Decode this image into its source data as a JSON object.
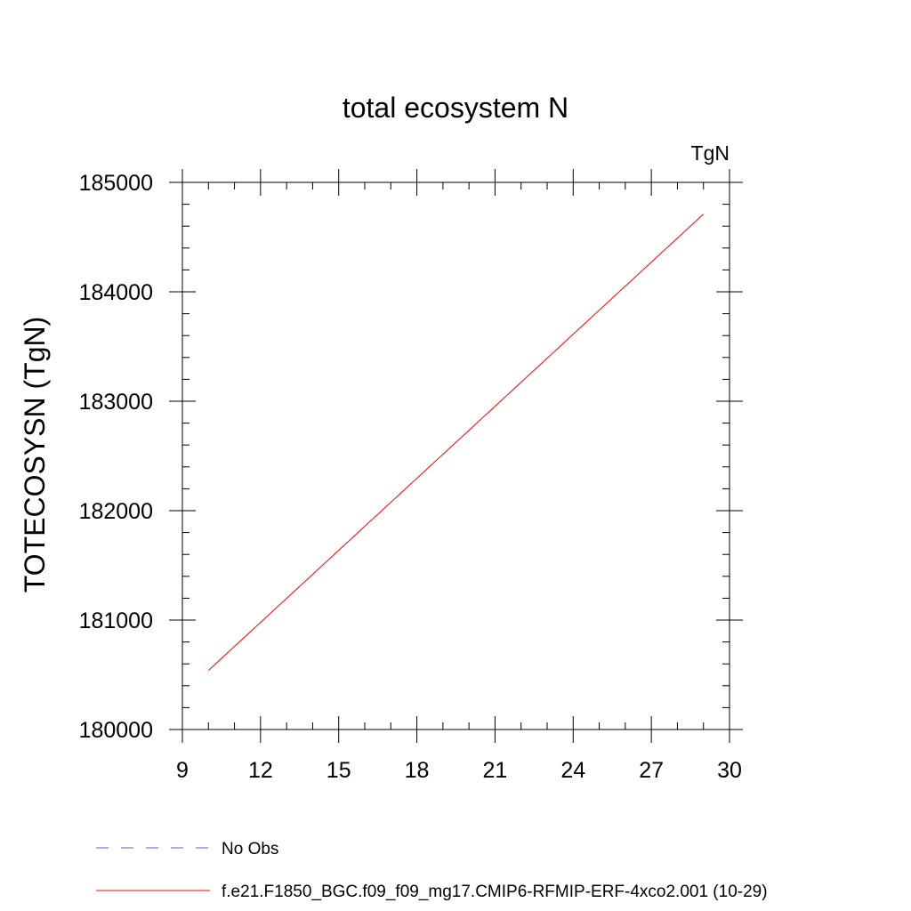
{
  "chart_data": {
    "type": "line",
    "title": "total ecosystem N",
    "units_label": "TgN",
    "ylabel": "TOTECOSYSN  (TgN)",
    "xlabel": "",
    "xlim": [
      9,
      30
    ],
    "ylim": [
      180000,
      185000
    ],
    "x_ticks": [
      9,
      12,
      15,
      18,
      21,
      24,
      27,
      30
    ],
    "y_ticks": [
      180000,
      181000,
      182000,
      183000,
      184000,
      185000
    ],
    "x_minor_step": 1,
    "y_minor_step": 200,
    "grid": false,
    "legend_position": "bottom",
    "series": [
      {
        "name": "f.e21.F1850_BGC.f09_f09_mg17.CMIP6-RFMIP-ERF-4xco2.001 (10-29)",
        "color": "#ff0000",
        "style": "solid",
        "x": [
          10,
          29
        ],
        "y": [
          180540,
          184710
        ]
      }
    ],
    "legend": [
      {
        "label": "No Obs",
        "color": "#6a5acd",
        "style": "dashed"
      },
      {
        "label": "f.e21.F1850_BGC.f09_f09_mg17.CMIP6-RFMIP-ERF-4xco2.001 (10-29)",
        "color": "#ff0000",
        "style": "solid"
      }
    ]
  }
}
